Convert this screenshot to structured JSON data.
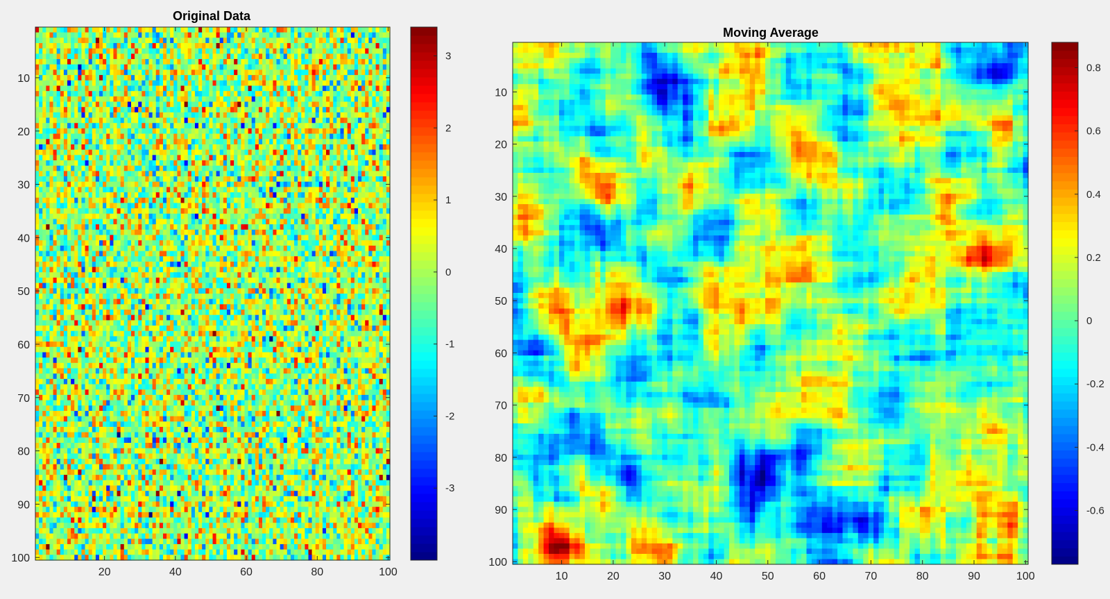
{
  "figure": {
    "background": "#f0f0f0",
    "colormap": "jet"
  },
  "chart_data": [
    {
      "type": "heatmap",
      "title": "Original Data",
      "xlabel": "",
      "ylabel": "",
      "rows": 100,
      "cols": 100,
      "generator": "white-noise",
      "random_seed": 7,
      "value_range": [
        -4,
        3.4
      ],
      "xlim": [
        1,
        100
      ],
      "ylim": [
        1,
        100
      ],
      "y_direction": "reverse",
      "xticks": [
        20,
        40,
        60,
        80,
        100
      ],
      "yticks": [
        10,
        20,
        30,
        40,
        50,
        60,
        70,
        80,
        90,
        100
      ],
      "colorbar": {
        "limits": [
          -4,
          3.4
        ],
        "ticks": [
          -3,
          -2,
          -1,
          0,
          1,
          2,
          3
        ],
        "tick_labels": [
          "-3",
          "-2",
          "-1",
          "0",
          "1",
          "2",
          "3"
        ]
      }
    },
    {
      "type": "heatmap",
      "title": "Moving Average",
      "xlabel": "",
      "ylabel": "",
      "rows": 100,
      "cols": 100,
      "generator": "moving-average-of-noise",
      "random_seed": 11,
      "value_range": [
        -0.77,
        0.88
      ],
      "xlim": [
        1,
        100
      ],
      "ylim": [
        1,
        100
      ],
      "y_direction": "reverse",
      "xticks": [
        10,
        20,
        30,
        40,
        50,
        60,
        70,
        80,
        90,
        100
      ],
      "yticks": [
        10,
        20,
        30,
        40,
        50,
        60,
        70,
        80,
        90,
        100
      ],
      "colorbar": {
        "limits": [
          -0.77,
          0.88
        ],
        "ticks": [
          -0.6,
          -0.4,
          -0.2,
          0,
          0.2,
          0.4,
          0.6,
          0.8
        ],
        "tick_labels": [
          "-0.6",
          "-0.4",
          "-0.2",
          "0",
          "0.2",
          "0.4",
          "0.6",
          "0.8"
        ]
      }
    }
  ]
}
